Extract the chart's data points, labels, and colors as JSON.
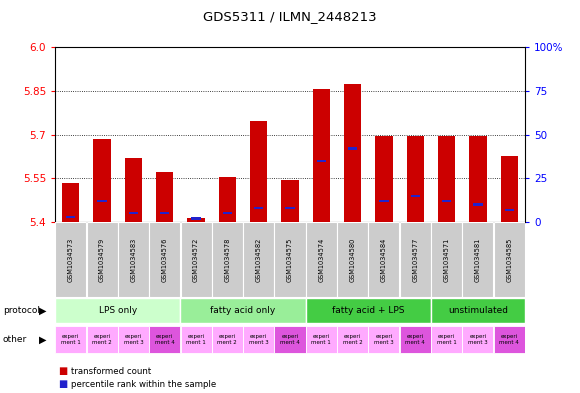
{
  "title": "GDS5311 / ILMN_2448213",
  "samples": [
    "GSM1034573",
    "GSM1034579",
    "GSM1034583",
    "GSM1034576",
    "GSM1034572",
    "GSM1034578",
    "GSM1034582",
    "GSM1034575",
    "GSM1034574",
    "GSM1034580",
    "GSM1034584",
    "GSM1034577",
    "GSM1034571",
    "GSM1034581",
    "GSM1034585"
  ],
  "red_values": [
    5.535,
    5.685,
    5.62,
    5.57,
    5.415,
    5.555,
    5.745,
    5.545,
    5.855,
    5.875,
    5.695,
    5.695,
    5.695,
    5.695,
    5.625
  ],
  "blue_pct": [
    3,
    12,
    5,
    5,
    2,
    5,
    8,
    8,
    35,
    42,
    12,
    15,
    12,
    10,
    7
  ],
  "y_min": 5.4,
  "y_max": 6.0,
  "y_ticks_left": [
    5.4,
    5.55,
    5.7,
    5.85,
    6.0
  ],
  "y_ticks_right": [
    0,
    25,
    50,
    75,
    100
  ],
  "proto_data": [
    [
      "LPS only",
      0,
      4,
      "#ccffcc"
    ],
    [
      "fatty acid only",
      4,
      8,
      "#99ee99"
    ],
    [
      "fatty acid + LPS",
      8,
      12,
      "#44cc44"
    ],
    [
      "unstimulated",
      12,
      15,
      "#44cc44"
    ]
  ],
  "other_colors": [
    "#ffaaff",
    "#ffaaff",
    "#ffaaff",
    "#dd55dd",
    "#ffaaff",
    "#ffaaff",
    "#ffaaff",
    "#dd55dd",
    "#ffaaff",
    "#ffaaff",
    "#ffaaff",
    "#dd55dd",
    "#ffaaff",
    "#ffaaff",
    "#dd55dd"
  ],
  "other_labels": [
    "experi\nment 1",
    "experi\nment 2",
    "experi\nment 3",
    "experi\nment 4",
    "experi\nment 1",
    "experi\nment 2",
    "experi\nment 3",
    "experi\nment 4",
    "experi\nment 1",
    "experi\nment 2",
    "experi\nment 3",
    "experi\nment 4",
    "experi\nment 1",
    "experi\nment 3",
    "experi\nment 4"
  ],
  "bar_width": 0.55,
  "red_color": "#cc0000",
  "blue_color": "#2222cc",
  "sample_bg": "#cccccc"
}
